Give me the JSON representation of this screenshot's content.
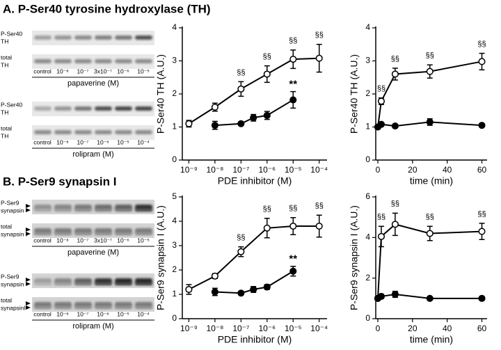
{
  "panels": [
    {
      "title": "A. P-Ser40 tyrosine hydroxylase (TH)",
      "blots": [
        {
          "rows": [
            [
              "P-Ser40",
              "TH"
            ],
            [
              "total",
              "TH"
            ]
          ],
          "lanes": [
            "control",
            "10⁻⁸",
            "10⁻⁷",
            "3x10⁻⁷",
            "10⁻⁶",
            "10⁻⁵"
          ],
          "treatment": "papaverine (M)"
        },
        {
          "rows": [
            [
              "P-Ser40",
              "TH"
            ],
            [
              "total",
              "TH"
            ]
          ],
          "lanes": [
            "control",
            "10⁻⁸",
            "10⁻⁷",
            "10⁻⁶",
            "10⁻⁵",
            "10⁻⁴"
          ],
          "treatment": "rolipram (M)"
        }
      ]
    },
    {
      "title": "B. P-Ser9 synapsin I",
      "blots": [
        {
          "rows": [
            [
              "P-Ser9",
              "synapsin"
            ],
            [
              "total",
              "synapsin I"
            ]
          ],
          "lanes": [
            "control",
            "10⁻⁸",
            "10⁻⁷",
            "3x10⁻⁷",
            "10⁻⁶",
            "10⁻⁵"
          ],
          "treatment": "papaverine (M)"
        },
        {
          "rows": [
            [
              "P-Ser9",
              "synapsin"
            ],
            [
              "total",
              "synapsinI"
            ]
          ],
          "lanes": [
            "control",
            "10⁻⁸",
            "10⁻⁷",
            "10⁻⁶",
            "10⁻⁵",
            "10⁻⁴"
          ],
          "treatment": "rolipram (M)"
        }
      ]
    }
  ],
  "chart_data": [
    {
      "type": "line",
      "xscale": "log",
      "x_label": "PDE inhibitor (M)",
      "y_label": "P-Ser40 TH (A.U.)",
      "xlim": [
        5.6e-10,
        0.0002
      ],
      "xticks": [
        {
          "value": 1e-09,
          "label": "10⁻⁹"
        },
        {
          "value": 1e-08,
          "label": "10⁻⁸"
        },
        {
          "value": 1e-07,
          "label": "10⁻⁷"
        },
        {
          "value": 1e-06,
          "label": "10⁻⁶"
        },
        {
          "value": 1e-05,
          "label": "10⁻⁵"
        },
        {
          "value": 0.0001,
          "label": "10⁻⁴"
        }
      ],
      "ylim": [
        0,
        4
      ],
      "yticks": [
        0,
        1,
        2,
        3,
        4
      ],
      "series": [
        {
          "color": "#000000",
          "marker_fill": "#ffffff",
          "x": [
            1e-09,
            1e-08,
            1e-07,
            1e-06,
            1e-05,
            0.0001
          ],
          "values": [
            1.1,
            1.6,
            2.15,
            2.6,
            3.05,
            3.08
          ],
          "errors": [
            0.1,
            0.12,
            0.22,
            0.25,
            0.28,
            0.42
          ],
          "annotations": [
            null,
            null,
            "§§",
            "§§",
            "§§",
            "§§"
          ]
        },
        {
          "color": "#000000",
          "marker_fill": "#000000",
          "x": [
            1e-08,
            1e-07,
            3e-07,
            1e-06,
            1e-05
          ],
          "values": [
            1.05,
            1.1,
            1.28,
            1.35,
            1.82
          ],
          "errors": [
            0.12,
            0.05,
            0.1,
            0.12,
            0.25
          ],
          "annotations": [
            null,
            null,
            null,
            null,
            "**"
          ]
        }
      ]
    },
    {
      "type": "line",
      "x_label": "time (min)",
      "y_label": "P-Ser40 TH (A.U.)",
      "xlim": [
        -1.2,
        63
      ],
      "xticks": [
        0,
        20,
        40,
        60
      ],
      "ylim": [
        0,
        4
      ],
      "yticks": [
        0,
        1,
        2,
        3,
        4
      ],
      "series": [
        {
          "color": "#000000",
          "marker_fill": "#ffffff",
          "x": [
            0,
            2,
            10,
            30,
            60
          ],
          "values": [
            1,
            1.78,
            2.6,
            2.68,
            2.98
          ],
          "errors": [
            0,
            0.1,
            0.18,
            0.2,
            0.25
          ],
          "annotations": [
            null,
            "§§",
            "§§",
            "§§",
            "§§"
          ]
        },
        {
          "color": "#000000",
          "marker_fill": "#000000",
          "x": [
            0,
            2,
            10,
            30,
            60
          ],
          "values": [
            1,
            1.08,
            1.03,
            1.15,
            1.05
          ],
          "errors": [
            0,
            0.05,
            0.05,
            0.1,
            0.04
          ],
          "annotations": [
            null,
            null,
            null,
            null,
            null
          ]
        }
      ]
    },
    {
      "type": "line",
      "xscale": "log",
      "x_label": "PDE inhibitor (M)",
      "y_label": "P-Ser9 synapsin I (A.U.)",
      "xlim": [
        5.6e-10,
        0.0002
      ],
      "xticks": [
        {
          "value": 1e-09,
          "label": "10⁻⁹"
        },
        {
          "value": 1e-08,
          "label": "10⁻⁸"
        },
        {
          "value": 1e-07,
          "label": "10⁻⁷"
        },
        {
          "value": 1e-06,
          "label": "10⁻⁶"
        },
        {
          "value": 1e-05,
          "label": "10⁻⁵"
        },
        {
          "value": 0.0001,
          "label": "10⁻⁴"
        }
      ],
      "ylim": [
        0,
        5
      ],
      "yticks": [
        0,
        1,
        2,
        3,
        4,
        5
      ],
      "series": [
        {
          "color": "#000000",
          "marker_fill": "#ffffff",
          "x": [
            1e-09,
            1e-08,
            1e-07,
            1e-06,
            1e-05,
            0.0001
          ],
          "values": [
            1.2,
            1.75,
            2.75,
            3.72,
            3.8,
            3.8
          ],
          "errors": [
            0.2,
            0.1,
            0.2,
            0.4,
            0.35,
            0.45
          ],
          "annotations": [
            null,
            null,
            "§§",
            "§§",
            "§§",
            "§§"
          ]
        },
        {
          "color": "#000000",
          "marker_fill": "#000000",
          "x": [
            1e-08,
            1e-07,
            3e-07,
            1e-06,
            1e-05
          ],
          "values": [
            1.1,
            1.05,
            1.2,
            1.3,
            1.95
          ],
          "errors": [
            0.15,
            0.05,
            0.12,
            0.1,
            0.2
          ],
          "annotations": [
            null,
            null,
            null,
            null,
            "**"
          ]
        }
      ]
    },
    {
      "type": "line",
      "x_label": "time (min)",
      "y_label": "P-Ser9 synapsin I (A.U.)",
      "xlim": [
        -1.2,
        63
      ],
      "xticks": [
        0,
        20,
        40,
        60
      ],
      "ylim": [
        0,
        6
      ],
      "yticks": [
        0,
        2,
        4,
        6
      ],
      "series": [
        {
          "color": "#000000",
          "marker_fill": "#ffffff",
          "x": [
            0,
            2,
            10,
            30,
            60
          ],
          "values": [
            1,
            4.05,
            4.65,
            4.2,
            4.3
          ],
          "errors": [
            0,
            0.5,
            0.55,
            0.35,
            0.4
          ],
          "annotations": [
            null,
            "§§",
            "§§",
            "§§",
            "§§"
          ]
        },
        {
          "color": "#000000",
          "marker_fill": "#000000",
          "x": [
            0,
            2,
            10,
            30,
            60
          ],
          "values": [
            1,
            1.1,
            1.2,
            1.0,
            1.0
          ],
          "errors": [
            0,
            0.1,
            0.15,
            0.05,
            0.1
          ],
          "annotations": [
            null,
            null,
            null,
            null,
            null
          ]
        }
      ]
    }
  ]
}
